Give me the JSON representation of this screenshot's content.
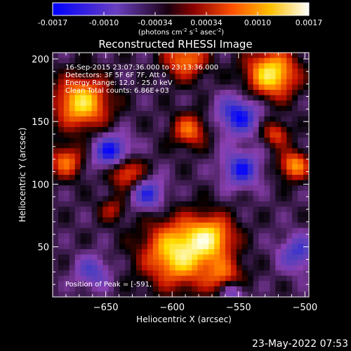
{
  "colorbar": {
    "ticks": [
      "-0.0017",
      "-0.0010",
      "-0.00034",
      "0.00034",
      "0.0010",
      "0.0017"
    ],
    "unit_main": "(photons cm",
    "unit_exp1": "-2",
    "unit_mid": " s",
    "unit_exp2": "-1",
    "unit_tail": " asec",
    "unit_exp3": "-2",
    "unit_close": ")"
  },
  "annotations": {
    "time": "16-Sep-2015 23:07:36.000 to 23:13:36.000",
    "detectors": "Detectors: 3F 5F 6F 7F, Att 0",
    "energy": "Energy Range: 12.0 - 25.0 keV",
    "clean": "Clean     Total counts: 6.86E+03",
    "peak": "Position of Peak = [-591,"
  },
  "footer": {
    "timestamp": "23-May-2022 07:53"
  },
  "chart_data": {
    "type": "heatmap",
    "title": "Reconstructed RHESSI Image",
    "xlabel": "Heliocentric X (arcsec)",
    "ylabel": "Heliocentric Y (arcsec)",
    "xlim": [
      -690,
      -497
    ],
    "ylim": [
      10,
      205
    ],
    "xticks": [
      -650,
      -600,
      -550,
      -500
    ],
    "yticks": [
      50,
      100,
      150,
      200
    ],
    "colorbar_range": [
      -0.0017,
      0.0017
    ],
    "colormap": [
      "#0000ff",
      "#4f3fbf",
      "#8a3fb0",
      "#000000",
      "#c31000",
      "#ff7000",
      "#ffe000",
      "#ffffe8"
    ],
    "sources": [
      {
        "x": -595,
        "y": 45,
        "sigma": 18,
        "value": 0.0017
      },
      {
        "x": -570,
        "y": 58,
        "sigma": 12,
        "value": 0.0012
      },
      {
        "x": -560,
        "y": 25,
        "sigma": 10,
        "value": 0.0009
      },
      {
        "x": -525,
        "y": 188,
        "sigma": 13,
        "value": 0.0017
      },
      {
        "x": -590,
        "y": 200,
        "sigma": 11,
        "value": 0.0011
      },
      {
        "x": -668,
        "y": 165,
        "sigma": 14,
        "value": 0.0016
      },
      {
        "x": -680,
        "y": 118,
        "sigma": 9,
        "value": 0.001
      },
      {
        "x": -635,
        "y": 110,
        "sigma": 9,
        "value": 0.0011
      },
      {
        "x": -587,
        "y": 143,
        "sigma": 9,
        "value": 0.001
      },
      {
        "x": -508,
        "y": 115,
        "sigma": 8,
        "value": 0.0012
      },
      {
        "x": -522,
        "y": 140,
        "sigma": 7,
        "value": 0.0008
      },
      {
        "x": -645,
        "y": 80,
        "sigma": 7,
        "value": 0.0005
      },
      {
        "x": -645,
        "y": 125,
        "sigma": 10,
        "value": -0.0014
      },
      {
        "x": -550,
        "y": 155,
        "sigma": 11,
        "value": -0.0013
      },
      {
        "x": -548,
        "y": 112,
        "sigma": 10,
        "value": -0.0012
      },
      {
        "x": -618,
        "y": 92,
        "sigma": 9,
        "value": -0.0011
      },
      {
        "x": -555,
        "y": 15,
        "sigma": 7,
        "value": -0.0011
      },
      {
        "x": -505,
        "y": 45,
        "sigma": 10,
        "value": -0.001
      },
      {
        "x": -660,
        "y": 30,
        "sigma": 9,
        "value": -0.0009
      }
    ],
    "background": -0.00045
  }
}
